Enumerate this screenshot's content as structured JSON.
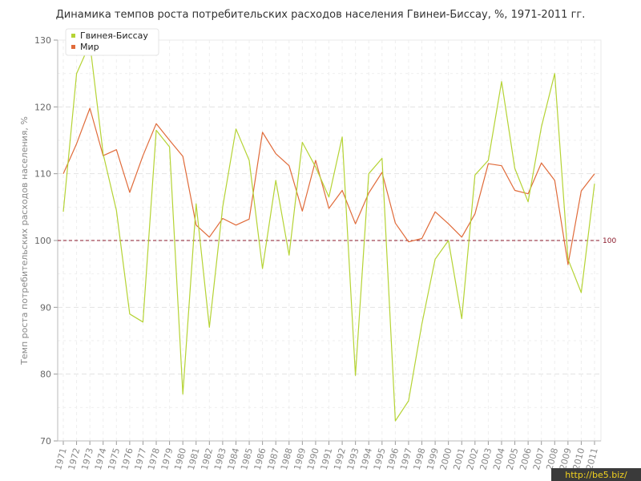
{
  "chart_data": {
    "type": "line",
    "title": "Динамика темпов роста потребительских расходов населения Гвинеи-Биссау, %, 1971-2011 гг.",
    "ylabel": "Темп роста потребительских расходов населения, %",
    "xlabel": "",
    "ylim": [
      70,
      130
    ],
    "yticks": [
      "70",
      "80",
      "90",
      "100",
      "110",
      "120",
      "130"
    ],
    "categories": [
      "1971",
      "1972",
      "1973",
      "1974",
      "1975",
      "1976",
      "1977",
      "1978",
      "1979",
      "1980",
      "1981",
      "1982",
      "1983",
      "1984",
      "1985",
      "1986",
      "1987",
      "1988",
      "1989",
      "1990",
      "1991",
      "1992",
      "1993",
      "1994",
      "1995",
      "1996",
      "1997",
      "1998",
      "1999",
      "2000",
      "2001",
      "2002",
      "2003",
      "2004",
      "2005",
      "2006",
      "2007",
      "2008",
      "2009",
      "2010",
      "2011"
    ],
    "series": [
      {
        "name": "Гвинея-Биссау",
        "color": "#b5d334",
        "values": [
          104.3,
          125.0,
          129.5,
          113.0,
          104.5,
          89.0,
          87.8,
          116.5,
          114.0,
          77.0,
          105.5,
          87.0,
          105.0,
          116.7,
          112.0,
          95.8,
          109.0,
          97.8,
          114.7,
          111.0,
          106.5,
          115.5,
          79.8,
          110.0,
          112.3,
          73.0,
          76.0,
          87.5,
          97.2,
          100.0,
          88.3,
          109.8,
          112.0,
          123.8,
          110.8,
          105.8,
          117.0,
          125.0,
          97.2,
          92.2,
          108.5
        ]
      },
      {
        "name": "Мир",
        "color": "#e06b3a",
        "values": [
          110.0,
          114.5,
          119.8,
          112.7,
          113.6,
          107.2,
          112.7,
          117.5,
          115.0,
          112.6,
          102.3,
          100.5,
          103.3,
          102.3,
          103.2,
          116.2,
          113.0,
          111.2,
          104.4,
          112.0,
          104.8,
          107.5,
          102.5,
          107.1,
          110.2,
          102.6,
          99.8,
          100.3,
          104.3,
          102.5,
          100.5,
          104.0,
          111.5,
          111.2,
          107.5,
          107.0,
          111.6,
          109.0,
          96.4,
          107.4,
          110.0
        ]
      }
    ],
    "reference_line": {
      "value": 100,
      "label": "100",
      "color": "#8b1a2b"
    },
    "legend_position": "top-left",
    "grid": true
  },
  "watermark": "http://be5.biz/"
}
